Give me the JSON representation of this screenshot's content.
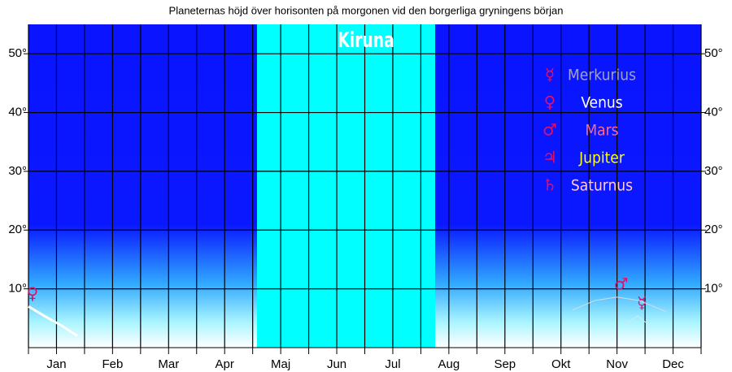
{
  "chart_data": {
    "type": "line",
    "title": "Planeternas höjd över horisonten på morgonen vid den borgerliga gryningens början",
    "place": "Kiruna",
    "xlim": [
      0,
      12
    ],
    "xticks": [
      {
        "value": 0.5,
        "label": "Jan"
      },
      {
        "value": 1.5,
        "label": "Feb"
      },
      {
        "value": 2.5,
        "label": "Mar"
      },
      {
        "value": 3.5,
        "label": "Apr"
      },
      {
        "value": 4.5,
        "label": "Maj"
      },
      {
        "value": 5.5,
        "label": "Jun"
      },
      {
        "value": 6.5,
        "label": "Jul"
      },
      {
        "value": 7.5,
        "label": "Aug"
      },
      {
        "value": 8.5,
        "label": "Sep"
      },
      {
        "value": 9.5,
        "label": "Okt"
      },
      {
        "value": 10.5,
        "label": "Nov"
      },
      {
        "value": 11.5,
        "label": "Dec"
      }
    ],
    "ylim": [
      0,
      55
    ],
    "yticks": [
      {
        "value": 10,
        "label": "10°"
      },
      {
        "value": 20,
        "label": "20°"
      },
      {
        "value": 30,
        "label": "30°"
      },
      {
        "value": 40,
        "label": "40°"
      },
      {
        "value": 50,
        "label": "50°"
      }
    ],
    "grid": true,
    "series": [
      {
        "name": "Merkurius",
        "symbol": "☿",
        "color": "#d8e8f0",
        "text_color": "#a0a0d0",
        "x": [
          10.65,
          10.87,
          11.09
        ],
        "values": [
          4,
          5.4,
          3.7
        ]
      },
      {
        "name": "Venus",
        "symbol": "♀",
        "color": "#ffffff",
        "text_color": "#ffffff",
        "x": [
          0,
          0.3,
          0.6,
          0.87
        ],
        "values": [
          7,
          5.3,
          3.7,
          2
        ]
      },
      {
        "name": "Mars",
        "symbol": "♂",
        "color": "#d0dde8",
        "text_color": "#ff6a8a",
        "x": [
          9.71,
          10.1,
          10.5,
          10.9,
          11.38
        ],
        "values": [
          6.4,
          8,
          8.6,
          8,
          6.1
        ]
      },
      {
        "name": "Jupiter",
        "symbol": "♃",
        "color": "#ffff00",
        "text_color": "#ffff00",
        "x": [],
        "values": []
      },
      {
        "name": "Saturnus",
        "symbol": "♄",
        "color": "#ffc0cb",
        "text_color": "#ffc8d8",
        "x": [],
        "values": []
      }
    ]
  }
}
